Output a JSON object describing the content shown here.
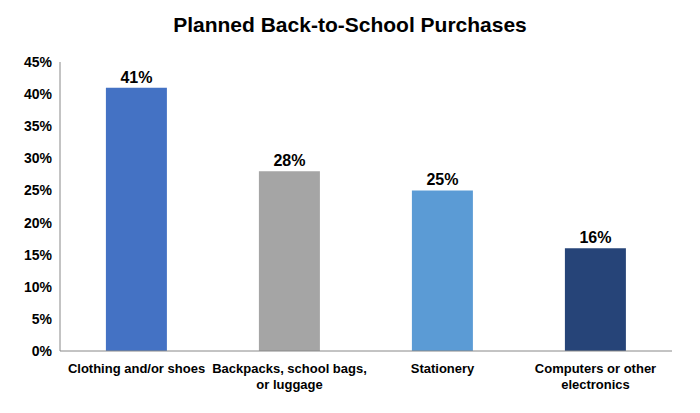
{
  "chart_data": {
    "type": "bar",
    "title": "Planned Back-to-School Purchases",
    "categories": [
      "Clothing and/or shoes",
      "Backpacks, school bags, or luggage",
      "Stationery",
      "Computers or other electronics"
    ],
    "values": [
      41,
      28,
      25,
      16
    ],
    "value_labels": [
      "41%",
      "28%",
      "25%",
      "16%"
    ],
    "colors": [
      "#4472c4",
      "#a5a5a5",
      "#5b9bd5",
      "#264478"
    ],
    "ylim": [
      0,
      45
    ],
    "yticks": [
      {
        "value": 0,
        "label": "0%"
      },
      {
        "value": 5,
        "label": "5%"
      },
      {
        "value": 10,
        "label": "10%"
      },
      {
        "value": 15,
        "label": "15%"
      },
      {
        "value": 20,
        "label": "20%"
      },
      {
        "value": 25,
        "label": "25%"
      },
      {
        "value": 30,
        "label": "30%"
      },
      {
        "value": 35,
        "label": "35%"
      },
      {
        "value": 40,
        "label": "40%"
      },
      {
        "value": 45,
        "label": "45%"
      }
    ],
    "grid": false,
    "data_labels": true
  }
}
